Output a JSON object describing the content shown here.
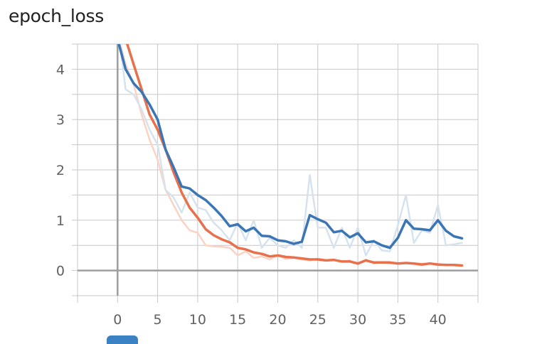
{
  "title": "epoch_loss",
  "colors": {
    "train_smoothed": "#e8704b",
    "train_raw": "#fbd3c4",
    "val_smoothed": "#3a75b5",
    "val_raw": "#d6e3ee",
    "grid": "#c8c8c8",
    "axis": "#9e9e9e",
    "legend_chip": "#3b82c4"
  },
  "chart_data": {
    "type": "line",
    "title": "epoch_loss",
    "xlabel": "",
    "ylabel": "",
    "xlim": [
      -5,
      45
    ],
    "ylim": [
      -0.5,
      4.5
    ],
    "xticks": [
      0,
      5,
      10,
      15,
      20,
      25,
      30,
      35,
      40
    ],
    "yticks": [
      0,
      1,
      2,
      3,
      4
    ],
    "grid": true,
    "series": [
      {
        "key": "train_raw",
        "x": [
          0,
          1,
          2,
          3,
          4,
          5,
          6,
          7,
          8,
          9,
          10,
          11,
          12,
          13,
          14,
          15,
          16,
          17,
          18,
          19,
          20,
          21,
          22,
          23,
          24,
          25,
          26,
          27,
          28,
          29,
          30,
          31,
          32,
          33,
          34,
          35,
          36,
          37,
          38,
          39,
          40,
          41,
          42,
          43
        ],
        "values": [
          4.7,
          4.1,
          3.7,
          3.1,
          2.6,
          2.2,
          1.6,
          1.3,
          1.0,
          0.8,
          0.75,
          0.5,
          0.48,
          0.47,
          0.45,
          0.3,
          0.38,
          0.25,
          0.28,
          0.22,
          0.3,
          0.23,
          0.25,
          0.22,
          0.2,
          0.24,
          0.2,
          0.22,
          0.17,
          0.2,
          0.12,
          0.22,
          0.14,
          0.16,
          0.14,
          0.13,
          0.15,
          0.13,
          0.1,
          0.14,
          0.1,
          0.12,
          0.1,
          0.09
        ]
      },
      {
        "key": "val_raw",
        "x": [
          0,
          1,
          2,
          3,
          4,
          5,
          6,
          7,
          8,
          9,
          10,
          11,
          12,
          13,
          14,
          15,
          16,
          17,
          18,
          19,
          20,
          21,
          22,
          23,
          24,
          25,
          26,
          27,
          28,
          29,
          30,
          31,
          32,
          33,
          34,
          35,
          36,
          37,
          38,
          39,
          40,
          41,
          42,
          43
        ],
        "values": [
          4.9,
          3.6,
          3.5,
          3.2,
          2.8,
          2.5,
          1.6,
          1.45,
          1.15,
          1.55,
          1.25,
          1.2,
          0.95,
          0.8,
          0.6,
          0.95,
          0.6,
          1.0,
          0.45,
          0.65,
          0.5,
          0.45,
          0.6,
          0.45,
          1.9,
          0.85,
          0.85,
          0.45,
          0.85,
          0.45,
          0.85,
          0.3,
          0.6,
          0.4,
          0.38,
          0.9,
          1.5,
          0.55,
          0.8,
          0.75,
          1.3,
          0.5,
          0.52,
          0.55
        ]
      },
      {
        "key": "train_smoothed",
        "x": [
          0,
          1,
          2,
          3,
          4,
          5,
          6,
          7,
          8,
          9,
          10,
          11,
          12,
          13,
          14,
          15,
          16,
          17,
          18,
          19,
          20,
          21,
          22,
          23,
          24,
          25,
          26,
          27,
          28,
          29,
          30,
          31,
          32,
          33,
          34,
          35,
          36,
          37,
          38,
          39,
          40,
          41,
          42,
          43
        ],
        "values": [
          5.0,
          4.6,
          4.1,
          3.6,
          3.1,
          2.8,
          2.4,
          1.95,
          1.55,
          1.25,
          1.05,
          0.82,
          0.7,
          0.62,
          0.56,
          0.45,
          0.42,
          0.36,
          0.33,
          0.28,
          0.3,
          0.27,
          0.26,
          0.24,
          0.22,
          0.22,
          0.2,
          0.21,
          0.18,
          0.18,
          0.14,
          0.2,
          0.16,
          0.16,
          0.16,
          0.14,
          0.15,
          0.14,
          0.12,
          0.14,
          0.12,
          0.11,
          0.11,
          0.1
        ]
      },
      {
        "key": "val_smoothed",
        "x": [
          0,
          1,
          2,
          3,
          4,
          5,
          6,
          7,
          8,
          9,
          10,
          11,
          12,
          13,
          14,
          15,
          16,
          17,
          18,
          19,
          20,
          21,
          22,
          23,
          24,
          25,
          26,
          27,
          28,
          29,
          30,
          31,
          32,
          33,
          34,
          35,
          36,
          37,
          38,
          39,
          40,
          41,
          42,
          43
        ],
        "values": [
          4.6,
          4.0,
          3.72,
          3.55,
          3.3,
          3.0,
          2.4,
          2.05,
          1.67,
          1.63,
          1.5,
          1.4,
          1.25,
          1.08,
          0.88,
          0.92,
          0.78,
          0.85,
          0.69,
          0.68,
          0.6,
          0.58,
          0.53,
          0.57,
          1.1,
          1.02,
          0.95,
          0.76,
          0.79,
          0.66,
          0.74,
          0.56,
          0.58,
          0.5,
          0.45,
          0.65,
          1.0,
          0.83,
          0.82,
          0.8,
          1.0,
          0.79,
          0.68,
          0.64
        ]
      }
    ]
  }
}
